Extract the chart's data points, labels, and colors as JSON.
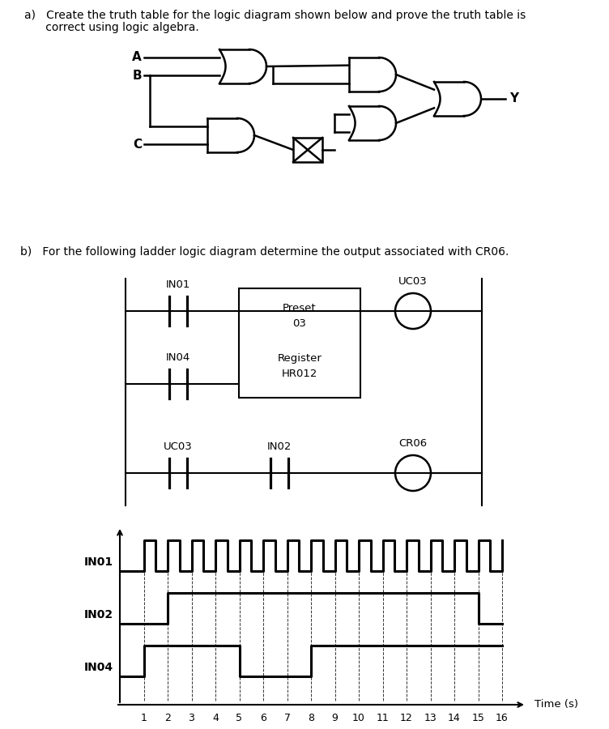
{
  "title_a_line1": "a)   Create the truth table for the logic diagram shown below and prove the truth table is",
  "title_a_line2": "      correct using logic algebra.",
  "title_b": "b)   For the following ladder logic diagram determine the output associated with CR06.",
  "text_color": "#000000",
  "bg_color": "#ffffff",
  "waveform_labels": [
    "IN01",
    "IN02",
    "IN04"
  ],
  "lad_IN01_label": "IN01",
  "lad_IN04_label": "IN04",
  "lad_UC03_label": "UC03",
  "lad_IN02_label": "IN02",
  "lad_UC03_out_label": "UC03",
  "lad_CR06_label": "CR06",
  "lad_preset_text": "Preset\n03",
  "lad_register_text": "Register\nHR012"
}
